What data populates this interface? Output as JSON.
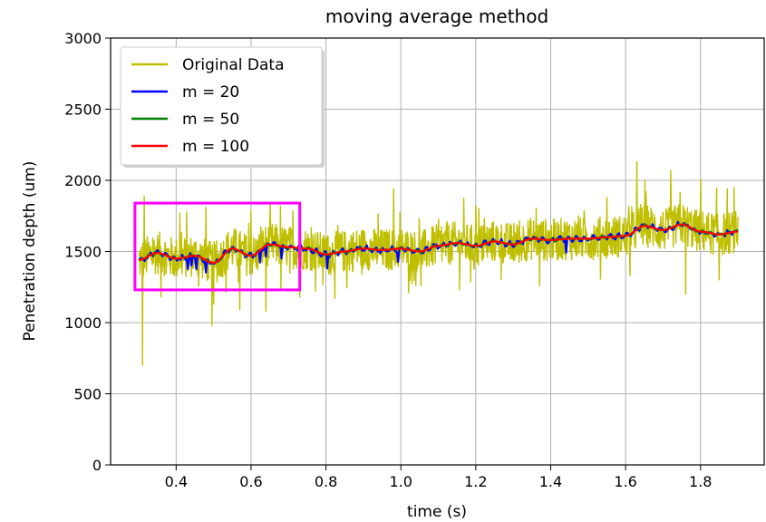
{
  "chart_data": {
    "type": "line",
    "title": "moving average method",
    "xlabel": "time (s)",
    "ylabel": "Penetration depth (um)",
    "xlim": [
      0.225,
      1.97
    ],
    "ylim": [
      0,
      3000
    ],
    "xticks": [
      0.4,
      0.6,
      0.8,
      1.0,
      1.2,
      1.4,
      1.6,
      1.8
    ],
    "xtick_labels": [
      "0.4",
      "0.6",
      "0.8",
      "1.0",
      "1.2",
      "1.4",
      "1.6",
      "1.8"
    ],
    "yticks": [
      0,
      500,
      1000,
      1500,
      2000,
      2500,
      3000
    ],
    "ytick_labels": [
      "0",
      "500",
      "1000",
      "1500",
      "2000",
      "2500",
      "3000"
    ],
    "grid": true,
    "legend_position": "top-left",
    "series": [
      {
        "name": "Original Data",
        "color": "#bfbf00",
        "kind": "noisy",
        "x": [
          0.3,
          0.35,
          0.4,
          0.45,
          0.5,
          0.55,
          0.6,
          0.65,
          0.7,
          0.75,
          0.8,
          0.85,
          0.9,
          0.95,
          1.0,
          1.05,
          1.1,
          1.15,
          1.2,
          1.25,
          1.3,
          1.35,
          1.4,
          1.45,
          1.5,
          1.55,
          1.6,
          1.65,
          1.7,
          1.75,
          1.8,
          1.85,
          1.9
        ],
        "y": [
          1440,
          1490,
          1450,
          1470,
          1420,
          1520,
          1470,
          1550,
          1530,
          1520,
          1480,
          1500,
          1520,
          1510,
          1520,
          1500,
          1540,
          1560,
          1540,
          1570,
          1550,
          1590,
          1580,
          1590,
          1590,
          1600,
          1610,
          1680,
          1650,
          1690,
          1640,
          1620,
          1640
        ],
        "noise_amplitude": 150,
        "spikes": [
          {
            "x": 0.31,
            "y": 700
          },
          {
            "x": 0.315,
            "y": 1890
          },
          {
            "x": 0.36,
            "y": 1180
          },
          {
            "x": 0.41,
            "y": 1770
          },
          {
            "x": 0.48,
            "y": 1810
          },
          {
            "x": 0.495,
            "y": 980
          },
          {
            "x": 0.5,
            "y": 1130
          },
          {
            "x": 0.57,
            "y": 1090
          },
          {
            "x": 0.6,
            "y": 1790
          },
          {
            "x": 0.64,
            "y": 1080
          },
          {
            "x": 0.68,
            "y": 1240
          },
          {
            "x": 0.73,
            "y": 1180
          },
          {
            "x": 0.98,
            "y": 1940
          },
          {
            "x": 1.04,
            "y": 1260
          },
          {
            "x": 1.2,
            "y": 1820
          },
          {
            "x": 1.37,
            "y": 1260
          },
          {
            "x": 1.55,
            "y": 1880
          },
          {
            "x": 1.63,
            "y": 2130
          },
          {
            "x": 1.64,
            "y": 1830
          },
          {
            "x": 1.72,
            "y": 2070
          },
          {
            "x": 1.76,
            "y": 1200
          },
          {
            "x": 1.8,
            "y": 2010
          },
          {
            "x": 1.85,
            "y": 1300
          }
        ]
      },
      {
        "name": "m = 20",
        "color": "#0000ff",
        "kind": "smooth",
        "x": [
          0.3,
          0.35,
          0.4,
          0.45,
          0.5,
          0.55,
          0.6,
          0.65,
          0.7,
          0.75,
          0.8,
          0.85,
          0.9,
          0.95,
          1.0,
          1.05,
          1.1,
          1.15,
          1.2,
          1.25,
          1.3,
          1.35,
          1.4,
          1.45,
          1.5,
          1.55,
          1.6,
          1.65,
          1.7,
          1.75,
          1.8,
          1.85,
          1.9
        ],
        "y": [
          1440,
          1490,
          1450,
          1470,
          1420,
          1520,
          1470,
          1550,
          1530,
          1520,
          1480,
          1500,
          1520,
          1510,
          1520,
          1500,
          1540,
          1560,
          1540,
          1570,
          1550,
          1590,
          1580,
          1590,
          1590,
          1600,
          1610,
          1680,
          1650,
          1690,
          1640,
          1620,
          1640
        ],
        "wiggle": 25
      },
      {
        "name": "m = 50",
        "color": "#008000",
        "kind": "smooth",
        "x": [
          0.3,
          0.35,
          0.4,
          0.45,
          0.5,
          0.55,
          0.6,
          0.65,
          0.7,
          0.75,
          0.8,
          0.85,
          0.9,
          0.95,
          1.0,
          1.05,
          1.1,
          1.15,
          1.2,
          1.25,
          1.3,
          1.35,
          1.4,
          1.45,
          1.5,
          1.55,
          1.6,
          1.65,
          1.7,
          1.75,
          1.8,
          1.85,
          1.9
        ],
        "y": [
          1440,
          1490,
          1450,
          1470,
          1420,
          1520,
          1470,
          1550,
          1530,
          1520,
          1480,
          1500,
          1520,
          1510,
          1520,
          1500,
          1540,
          1560,
          1540,
          1570,
          1550,
          1590,
          1580,
          1590,
          1590,
          1600,
          1610,
          1680,
          1650,
          1690,
          1640,
          1620,
          1640
        ],
        "wiggle": 10
      },
      {
        "name": "m = 100",
        "color": "#ff0000",
        "kind": "smooth",
        "x": [
          0.3,
          0.35,
          0.4,
          0.45,
          0.5,
          0.55,
          0.6,
          0.65,
          0.7,
          0.75,
          0.8,
          0.85,
          0.9,
          0.95,
          1.0,
          1.05,
          1.1,
          1.15,
          1.2,
          1.25,
          1.3,
          1.35,
          1.4,
          1.45,
          1.5,
          1.55,
          1.6,
          1.65,
          1.7,
          1.75,
          1.8,
          1.85,
          1.9
        ],
        "y": [
          1440,
          1490,
          1450,
          1470,
          1420,
          1520,
          1470,
          1550,
          1530,
          1520,
          1480,
          1500,
          1520,
          1510,
          1520,
          1500,
          1540,
          1560,
          1540,
          1570,
          1550,
          1590,
          1580,
          1590,
          1590,
          1600,
          1610,
          1680,
          1650,
          1690,
          1640,
          1620,
          1640
        ],
        "wiggle": 0
      }
    ],
    "annotation": {
      "type": "rectangle",
      "color": "#ff00ff",
      "x0": 0.29,
      "x1": 0.73,
      "y0": 1230,
      "y1": 1840
    }
  }
}
